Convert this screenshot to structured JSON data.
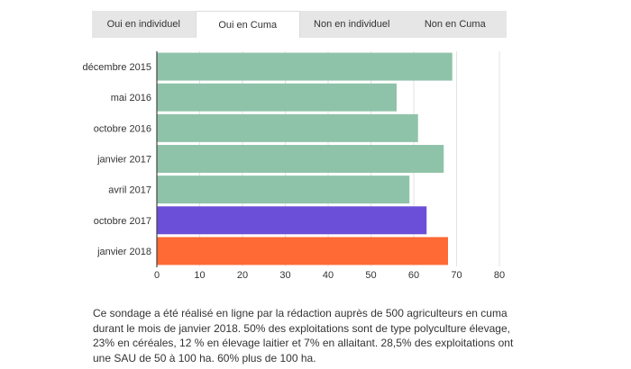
{
  "tabs": [
    {
      "label": "Oui en individuel",
      "active": false
    },
    {
      "label": "Oui en Cuma",
      "active": true
    },
    {
      "label": "Non en individuel",
      "active": false
    },
    {
      "label": "Non en Cuma",
      "active": false
    }
  ],
  "chart_data": {
    "type": "bar",
    "orientation": "horizontal",
    "categories": [
      "décembre 2015",
      "mai 2016",
      "octobre 2016",
      "janvier 2017",
      "avril 2017",
      "octobre 2017",
      "janvier 2018"
    ],
    "values": [
      69,
      56,
      61,
      67,
      59,
      63,
      68
    ],
    "colors": [
      "#8fc3a9",
      "#8fc3a9",
      "#8fc3a9",
      "#8fc3a9",
      "#8fc3a9",
      "#6c4fd8",
      "#ff6a35"
    ],
    "xlim": [
      0,
      80
    ],
    "xticks": [
      0,
      10,
      20,
      30,
      40,
      50,
      60,
      70,
      80
    ],
    "title": "",
    "xlabel": "",
    "ylabel": ""
  },
  "caption": " Ce sondage a été réalisé en ligne par la rédaction auprès de 500 agriculteurs en cuma durant le mois de janvier 2018. 50% des exploitations sont de type polyculture élevage, 23% en céréales, 12 % en élevage laitier et 7% en allaitant. 28,5% des exploitations ont une SAU de 50 à 100 ha. 60% plus de 100 ha."
}
